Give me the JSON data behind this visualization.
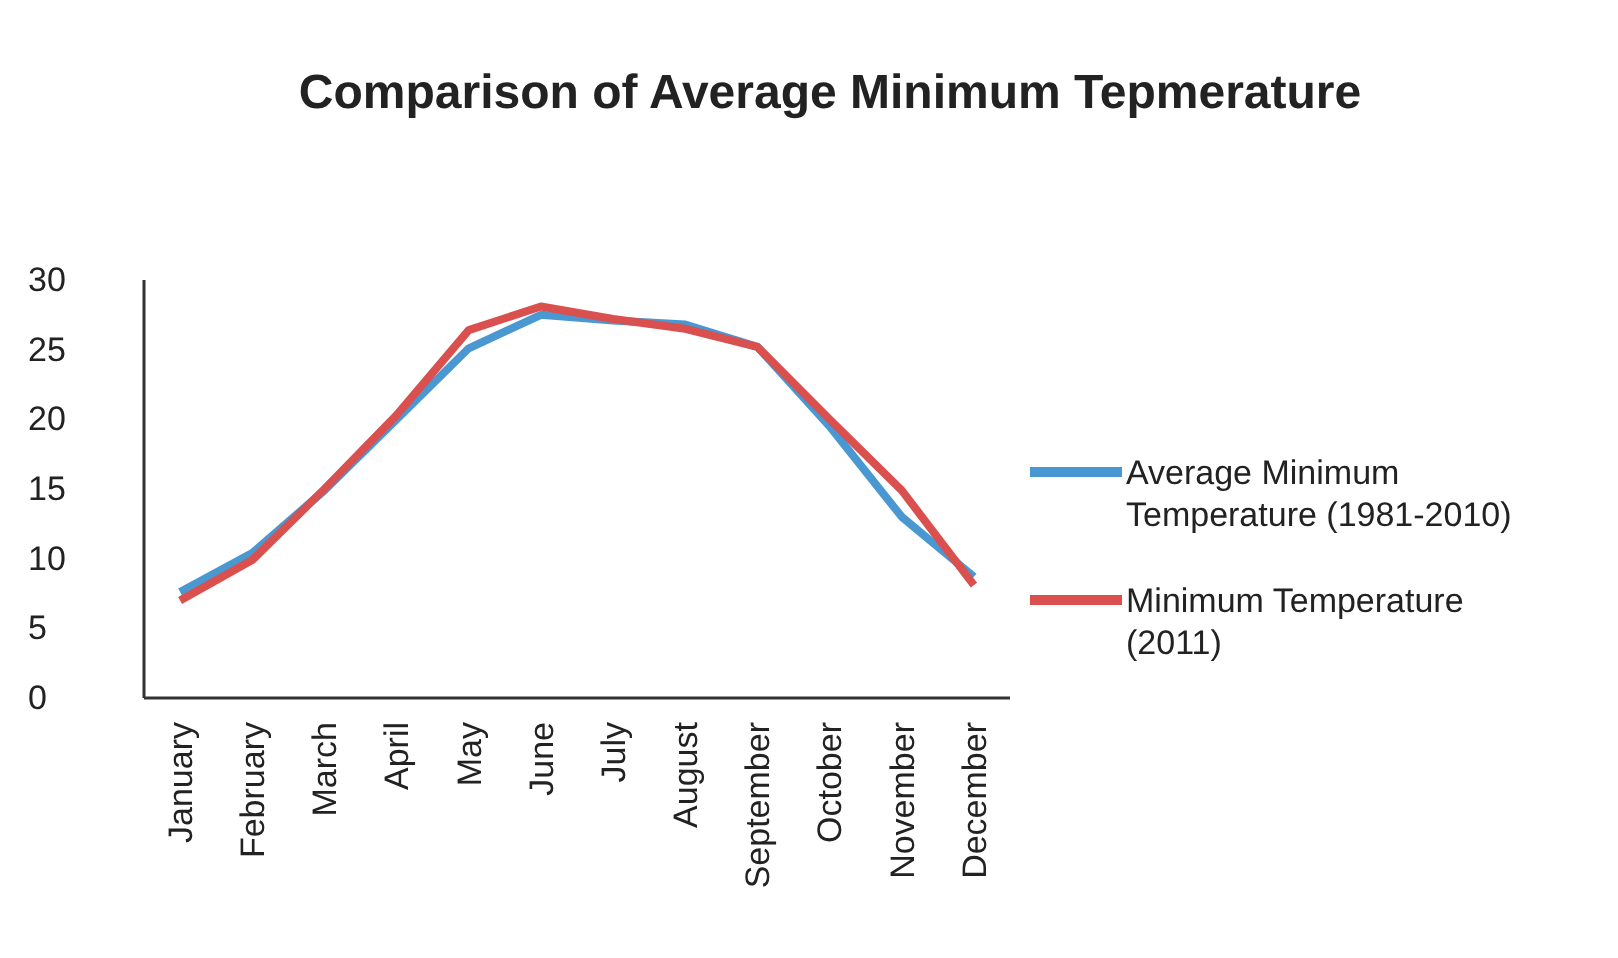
{
  "chart_data": {
    "type": "line",
    "title": "Comparison of Average Minimum Tepmerature",
    "categories": [
      "January",
      "February",
      "March",
      "April",
      "May",
      "June",
      "July",
      "August",
      "September",
      "October",
      "November",
      "December"
    ],
    "series": [
      {
        "name": "Average Minimum Temperature (1981-2010)",
        "color": "#4a98d2",
        "values": [
          7.6,
          10.4,
          14.9,
          20,
          25.1,
          27.5,
          27.1,
          26.8,
          25.2,
          19.5,
          13,
          8.7
        ]
      },
      {
        "name": "Minimum Temperature (2011)",
        "color": "#d9504f",
        "values": [
          7,
          9.9,
          15,
          20.3,
          26.4,
          28.1,
          27.2,
          26.5,
          25.2,
          20,
          14.9,
          8.1
        ]
      }
    ],
    "ylim": [
      0,
      30
    ],
    "yticks": [
      0,
      5,
      10,
      15,
      20,
      25,
      30
    ],
    "grid": false,
    "legend": "right",
    "marker": "none",
    "line_style": "solid"
  }
}
